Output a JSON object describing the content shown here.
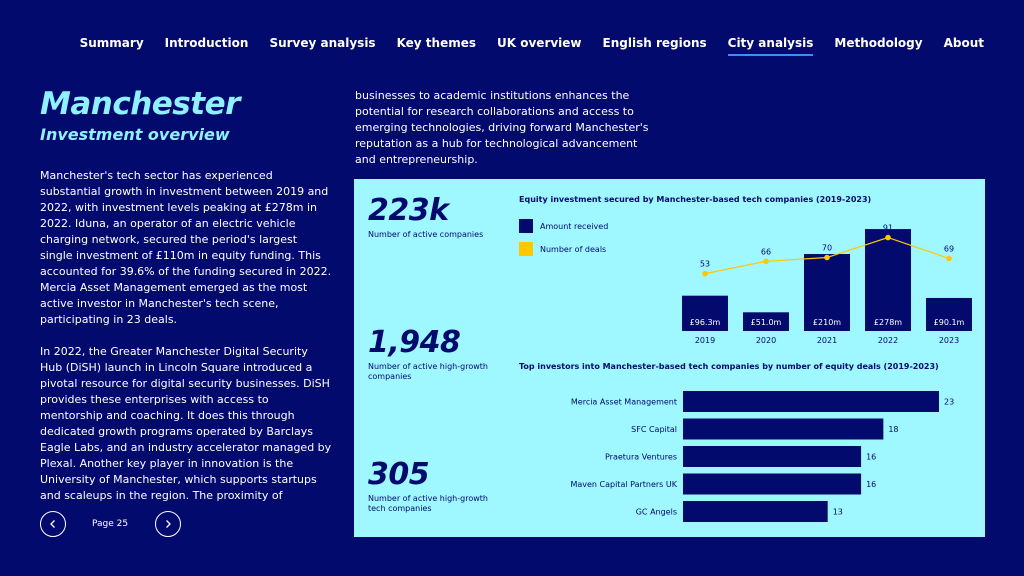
{
  "nav": [
    {
      "label": "Summary",
      "active": false
    },
    {
      "label": "Introduction",
      "active": false
    },
    {
      "label": "Survey analysis",
      "active": false
    },
    {
      "label": "Key themes",
      "active": false
    },
    {
      "label": "UK overview",
      "active": false
    },
    {
      "label": "English regions",
      "active": false
    },
    {
      "label": "City analysis",
      "active": true
    },
    {
      "label": "Methodology",
      "active": false
    },
    {
      "label": "About",
      "active": false
    }
  ],
  "page": {
    "title": "Manchester",
    "subtitle": "Investment overview",
    "paragraph1": "Manchester's tech sector has experienced substantial growth in investment between 2019 and 2022, with investment levels peaking at £278m in 2022. Iduna, an operator of an electric vehicle charging network, secured the period's largest single investment of £110m in equity funding. This accounted for 39.6% of the funding secured in 2022. Mercia Asset Management emerged as the most active investor in Manchester's tech scene, participating in 23 deals.",
    "paragraph2": "In 2022, the Greater Manchester Digital Security Hub (DiSH) launch in Lincoln Square introduced a pivotal resource for digital security businesses. DiSH provides these enterprises with access to mentorship and coaching. It does this through dedicated growth programs operated by Barclays Eagle Labs, and an industry accelerator managed by Plexal. Another key player in innovation is the University of Manchester, which supports startups and scaleups in the region. The proximity of",
    "continuation": "businesses to academic institutions enhances the potential for research collaborations and access to emerging technologies, driving forward Manchester's reputation as a hub for technological advancement and entrepreneurship."
  },
  "pager": {
    "label": "Page 25",
    "prev_icon": "chevron-left-icon",
    "next_icon": "chevron-right-icon"
  },
  "stats": [
    {
      "value": "223k",
      "label": "Number of active companies"
    },
    {
      "value": "1,948",
      "label": "Number of active high-growth companies"
    },
    {
      "value": "305",
      "label": "Number of active high-growth tech companies"
    }
  ],
  "colors": {
    "background": "#030a6e",
    "panel": "#9ff7ff",
    "bar": "#030a6e",
    "deals": "#ffc700",
    "accent_title": "#8ff1ff"
  },
  "chart_data": [
    {
      "type": "bar",
      "title": "Equity investment secured by Manchester-based tech companies (2019-2023)",
      "categories": [
        "2019",
        "2020",
        "2021",
        "2022",
        "2023"
      ],
      "series": [
        {
          "name": "Amount received",
          "type": "bar",
          "values": [
            96.3,
            51.0,
            210,
            278,
            90.1
          ],
          "labels": [
            "£96.3m",
            "£51.0m",
            "£210m",
            "£278m",
            "£90.1m"
          ]
        },
        {
          "name": "Number of deals",
          "type": "line",
          "values": [
            53,
            66,
            70,
            91,
            69
          ]
        }
      ],
      "legend_position": "top-left",
      "grid": false
    },
    {
      "type": "bar",
      "orientation": "horizontal",
      "title": "Top investors into Manchester-based tech companies by number of equity deals (2019-2023)",
      "categories": [
        "Mercia Asset Management",
        "SFC Capital",
        "Praetura Ventures",
        "Maven Capital Partners UK",
        "GC Angels"
      ],
      "values": [
        23,
        18,
        16,
        16,
        13
      ],
      "grid": false
    }
  ]
}
